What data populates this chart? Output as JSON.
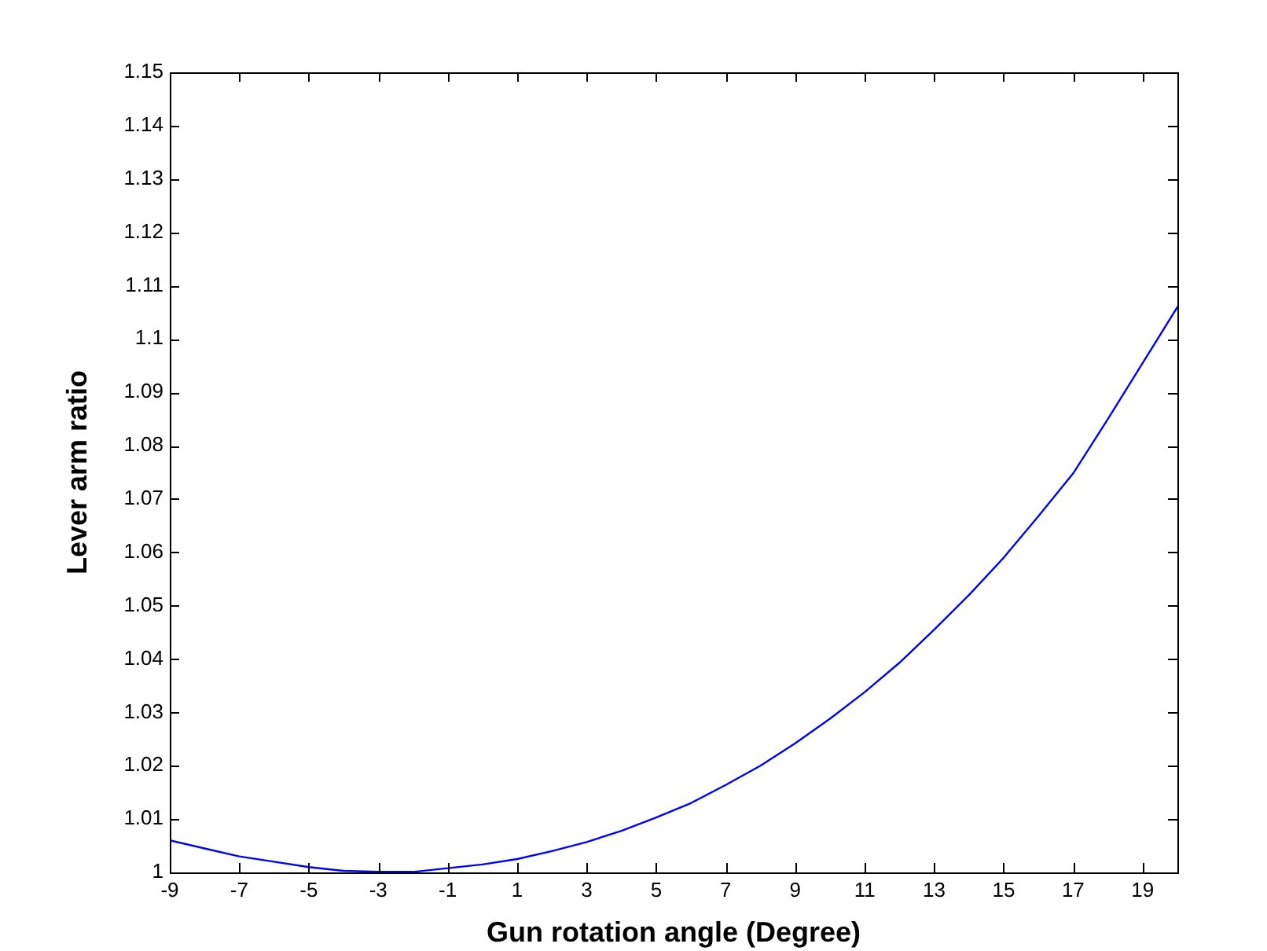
{
  "chart_data": {
    "type": "line",
    "xlabel": "Gun rotation angle (Degree)",
    "ylabel": "Lever arm ratio",
    "x": [
      -9,
      -8,
      -7,
      -6,
      -5,
      -4,
      -3,
      -2,
      -1,
      0,
      1,
      2,
      3,
      4,
      5,
      6,
      7,
      8,
      9,
      10,
      11,
      12,
      13,
      14,
      15,
      16,
      17,
      18,
      19,
      20
    ],
    "series": [
      {
        "color": "#0000ff",
        "values": [
          1.006,
          1.0045,
          1.003,
          1.002,
          1.001,
          1.0003,
          1.0001,
          1.0001,
          1.0008,
          1.0015,
          1.0025,
          1.004,
          1.0057,
          1.0078,
          1.0103,
          1.013,
          1.0164,
          1.02,
          1.0242,
          1.0288,
          1.0338,
          1.0393,
          1.0455,
          1.052,
          1.059,
          1.0668,
          1.0748,
          1.085,
          1.0955,
          1.106
        ]
      }
    ],
    "xlim": [
      -9,
      20
    ],
    "xticks": [
      -9,
      -7,
      -5,
      -3,
      -1,
      1,
      3,
      5,
      7,
      9,
      11,
      13,
      15,
      17,
      19
    ],
    "ylim": [
      1,
      1.15
    ],
    "yticks": [
      1,
      1.01,
      1.02,
      1.03,
      1.04,
      1.05,
      1.06,
      1.07,
      1.08,
      1.09,
      1.1,
      1.11,
      1.12,
      1.13,
      1.14,
      1.15
    ],
    "grid": false,
    "legend": false,
    "marker": "none",
    "line_style": "solid"
  }
}
